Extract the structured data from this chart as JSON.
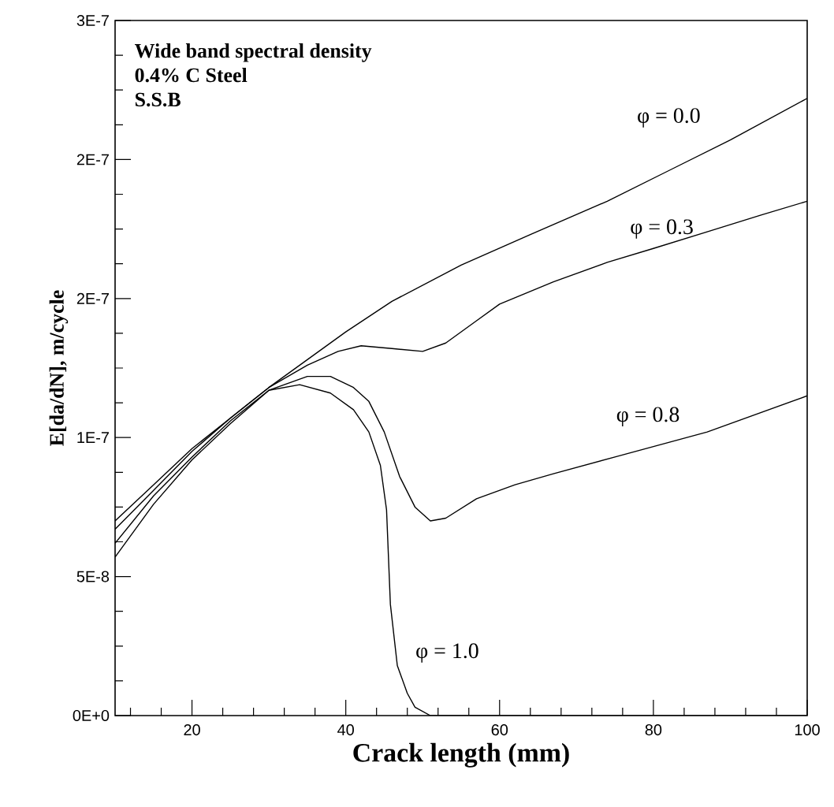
{
  "chart_data": {
    "type": "line",
    "annotations": [
      "Wide band spectral density",
      "0.4% C Steel",
      "S.S.B"
    ],
    "xlabel": "Crack length (mm)",
    "ylabel": "E[da/dN], m/cycle",
    "xlim": [
      10,
      100
    ],
    "xticks": [
      20,
      40,
      60,
      80,
      100
    ],
    "ylim": [
      0,
      2.5e-07
    ],
    "yticks": [
      {
        "value": 0,
        "label": "0E+0"
      },
      {
        "value": 5e-08,
        "label": "5E-8"
      },
      {
        "value": 1e-07,
        "label": "1E-7"
      },
      {
        "value": 1.5e-07,
        "label": "2E-7"
      },
      {
        "value": 2e-07,
        "label": "2E-7"
      },
      {
        "value": 2.5e-07,
        "label": "3E-7"
      }
    ],
    "grid": false,
    "legend": false,
    "marker": "none",
    "line_style": "solid",
    "series": [
      {
        "name": "φ = 0.0",
        "color": "#000000",
        "x": [
          10,
          15,
          20,
          25,
          30,
          35,
          40,
          46,
          55,
          64,
          74,
          82,
          90,
          100
        ],
        "values": [
          7e-08,
          8.3e-08,
          9.6e-08,
          1.07e-07,
          1.18e-07,
          1.28e-07,
          1.38e-07,
          1.49e-07,
          1.62e-07,
          1.73e-07,
          1.85e-07,
          1.96e-07,
          2.07e-07,
          2.22e-07
        ]
      },
      {
        "name": "φ = 0.3",
        "color": "#000000",
        "x": [
          10,
          15,
          20,
          25,
          30,
          35,
          39,
          42,
          46,
          50,
          53,
          57,
          60,
          67,
          74,
          80,
          87,
          94,
          100
        ],
        "values": [
          6.7e-08,
          8.1e-08,
          9.5e-08,
          1.07e-07,
          1.18e-07,
          1.26e-07,
          1.31e-07,
          1.33e-07,
          1.32e-07,
          1.31e-07,
          1.34e-07,
          1.42e-07,
          1.48e-07,
          1.56e-07,
          1.63e-07,
          1.68e-07,
          1.74e-07,
          1.8e-07,
          1.85e-07
        ]
      },
      {
        "name": "φ = 0.8",
        "color": "#000000",
        "x": [
          10,
          15,
          20,
          25,
          30,
          35,
          38,
          41,
          43,
          45,
          47,
          49,
          51,
          53,
          57,
          62,
          67,
          75,
          87,
          100
        ],
        "values": [
          6.2e-08,
          7.9e-08,
          9.3e-08,
          1.06e-07,
          1.17e-07,
          1.22e-07,
          1.22e-07,
          1.18e-07,
          1.13e-07,
          1.02e-07,
          8.6e-08,
          7.5e-08,
          7e-08,
          7.1e-08,
          7.8e-08,
          8.3e-08,
          8.7e-08,
          9.3e-08,
          1.02e-07,
          1.15e-07
        ]
      },
      {
        "name": "φ = 1.0",
        "color": "#000000",
        "x": [
          10,
          15,
          20,
          25,
          30,
          34,
          38,
          41,
          43,
          44.5,
          45.3,
          45.8,
          46.7,
          48,
          49,
          51,
          60,
          70,
          80,
          90,
          100
        ],
        "values": [
          5.7e-08,
          7.6e-08,
          9.2e-08,
          1.05e-07,
          1.17e-07,
          1.19e-07,
          1.16e-07,
          1.1e-07,
          1.02e-07,
          9e-08,
          7.4e-08,
          4e-08,
          1.8e-08,
          8e-09,
          3e-09,
          0,
          0,
          0,
          0,
          0,
          0
        ]
      }
    ]
  }
}
